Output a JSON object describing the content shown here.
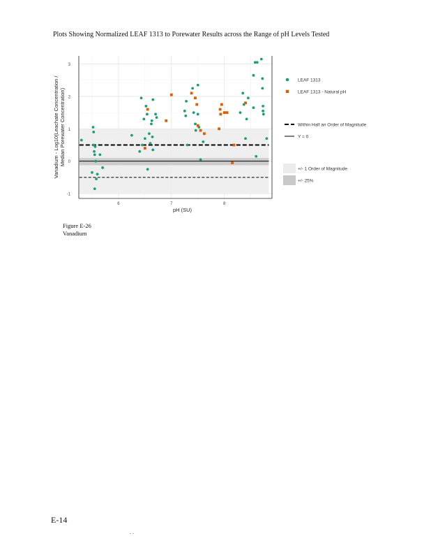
{
  "page": {
    "title": "Plots Showing Normalized LEAF 1313 to Porewater Results across the Range of pH Levels Tested",
    "figure_number": "Figure E-26",
    "figure_name": "Vanadium",
    "page_number": "E-14",
    "footer_mark": ". ."
  },
  "chart_data": {
    "type": "scatter",
    "xlabel": "pH (SU)",
    "ylabel_line1": "Vanadium - Log10(Leachate Concentration /",
    "ylabel_line2": "Median Porewater Concentration)",
    "x_ticks": [
      6,
      7,
      8
    ],
    "y_ticks": [
      -1,
      0,
      1,
      2,
      3
    ],
    "xlim": [
      5.25,
      8.9
    ],
    "ylim": [
      -1.15,
      3.25
    ],
    "grid": true,
    "legend_position": "right",
    "colors": {
      "leaf": "#1b9e77",
      "natural": "#d95f02",
      "band_order": "#ececec",
      "band_25": "#c8c8c8"
    },
    "reference_bands": {
      "order_of_magnitude": [
        -1,
        1
      ],
      "pct25": [
        -0.125,
        0.097
      ]
    },
    "reference_lines": {
      "half_order_upper": 0.5,
      "half_order_lower": -0.5,
      "zero": 0
    },
    "series": [
      {
        "name": "LEAF 1313",
        "color": "#1b9e77",
        "points": [
          [
            5.3,
            0.65
          ],
          [
            5.5,
            -0.35
          ],
          [
            5.52,
            1.05
          ],
          [
            5.53,
            0.9
          ],
          [
            5.53,
            0.5
          ],
          [
            5.54,
            0.3
          ],
          [
            5.55,
            0.2
          ],
          [
            5.55,
            -0.85
          ],
          [
            5.56,
            0.45
          ],
          [
            5.57,
            0.0
          ],
          [
            5.58,
            -0.55
          ],
          [
            5.6,
            -0.4
          ],
          [
            5.65,
            0.2
          ],
          [
            5.7,
            -0.2
          ],
          [
            6.25,
            0.8
          ],
          [
            6.4,
            0.3
          ],
          [
            6.43,
            1.95
          ],
          [
            6.45,
            0.5
          ],
          [
            6.48,
            1.3
          ],
          [
            6.5,
            0.7
          ],
          [
            6.52,
            1.7
          ],
          [
            6.54,
            1.45
          ],
          [
            6.55,
            -0.25
          ],
          [
            6.58,
            0.85
          ],
          [
            6.6,
            0.55
          ],
          [
            6.62,
            1.15
          ],
          [
            6.63,
            1.25
          ],
          [
            6.64,
            0.75
          ],
          [
            6.65,
            1.9
          ],
          [
            6.65,
            0.35
          ],
          [
            6.7,
            1.45
          ],
          [
            6.72,
            1.35
          ],
          [
            7.25,
            1.55
          ],
          [
            7.27,
            1.4
          ],
          [
            7.28,
            1.85
          ],
          [
            7.3,
            0.5
          ],
          [
            7.4,
            2.25
          ],
          [
            7.42,
            1.5
          ],
          [
            7.45,
            1.15
          ],
          [
            7.46,
            0.95
          ],
          [
            7.5,
            1.45
          ],
          [
            7.5,
            2.35
          ],
          [
            7.52,
            1.05
          ],
          [
            7.55,
            0.05
          ],
          [
            7.6,
            0.6
          ],
          [
            8.3,
            1.5
          ],
          [
            8.35,
            2.1
          ],
          [
            8.37,
            1.75
          ],
          [
            8.4,
            0.7
          ],
          [
            8.42,
            1.3
          ],
          [
            8.55,
            2.65
          ],
          [
            8.58,
            3.05
          ],
          [
            8.6,
            0.15
          ],
          [
            8.62,
            3.05
          ],
          [
            8.7,
            3.15
          ],
          [
            8.72,
            2.55
          ],
          [
            8.72,
            2.25
          ],
          [
            8.73,
            1.7
          ],
          [
            8.73,
            1.55
          ],
          [
            8.74,
            1.45
          ],
          [
            8.8,
            0.7
          ],
          [
            8.55,
            1.65
          ],
          [
            8.45,
            1.95
          ]
        ]
      },
      {
        "name": "LEAF 1313 - Natural pH",
        "color": "#d95f02",
        "points": [
          [
            6.5,
            0.4
          ],
          [
            6.55,
            1.6
          ],
          [
            6.9,
            1.25
          ],
          [
            7.0,
            2.05
          ],
          [
            7.38,
            2.1
          ],
          [
            7.45,
            1.95
          ],
          [
            7.48,
            1.75
          ],
          [
            7.5,
            1.1
          ],
          [
            7.55,
            0.95
          ],
          [
            7.62,
            0.85
          ],
          [
            7.9,
            1.0
          ],
          [
            7.92,
            1.6
          ],
          [
            7.93,
            1.45
          ],
          [
            7.95,
            1.75
          ],
          [
            8.0,
            1.5
          ],
          [
            8.05,
            1.5
          ],
          [
            8.15,
            -0.05
          ],
          [
            8.18,
            0.5
          ],
          [
            8.4,
            1.8
          ]
        ]
      }
    ],
    "legend": {
      "leaf": "LEAF 1313",
      "natural": "LEAF 1313 - Natural pH",
      "half_order": "Within Half an Order of Magnitude",
      "zero_line": "Y = 0",
      "order_band": "+/- 1 Order of Magnitude",
      "pct25_band": "+/- 25%"
    }
  }
}
